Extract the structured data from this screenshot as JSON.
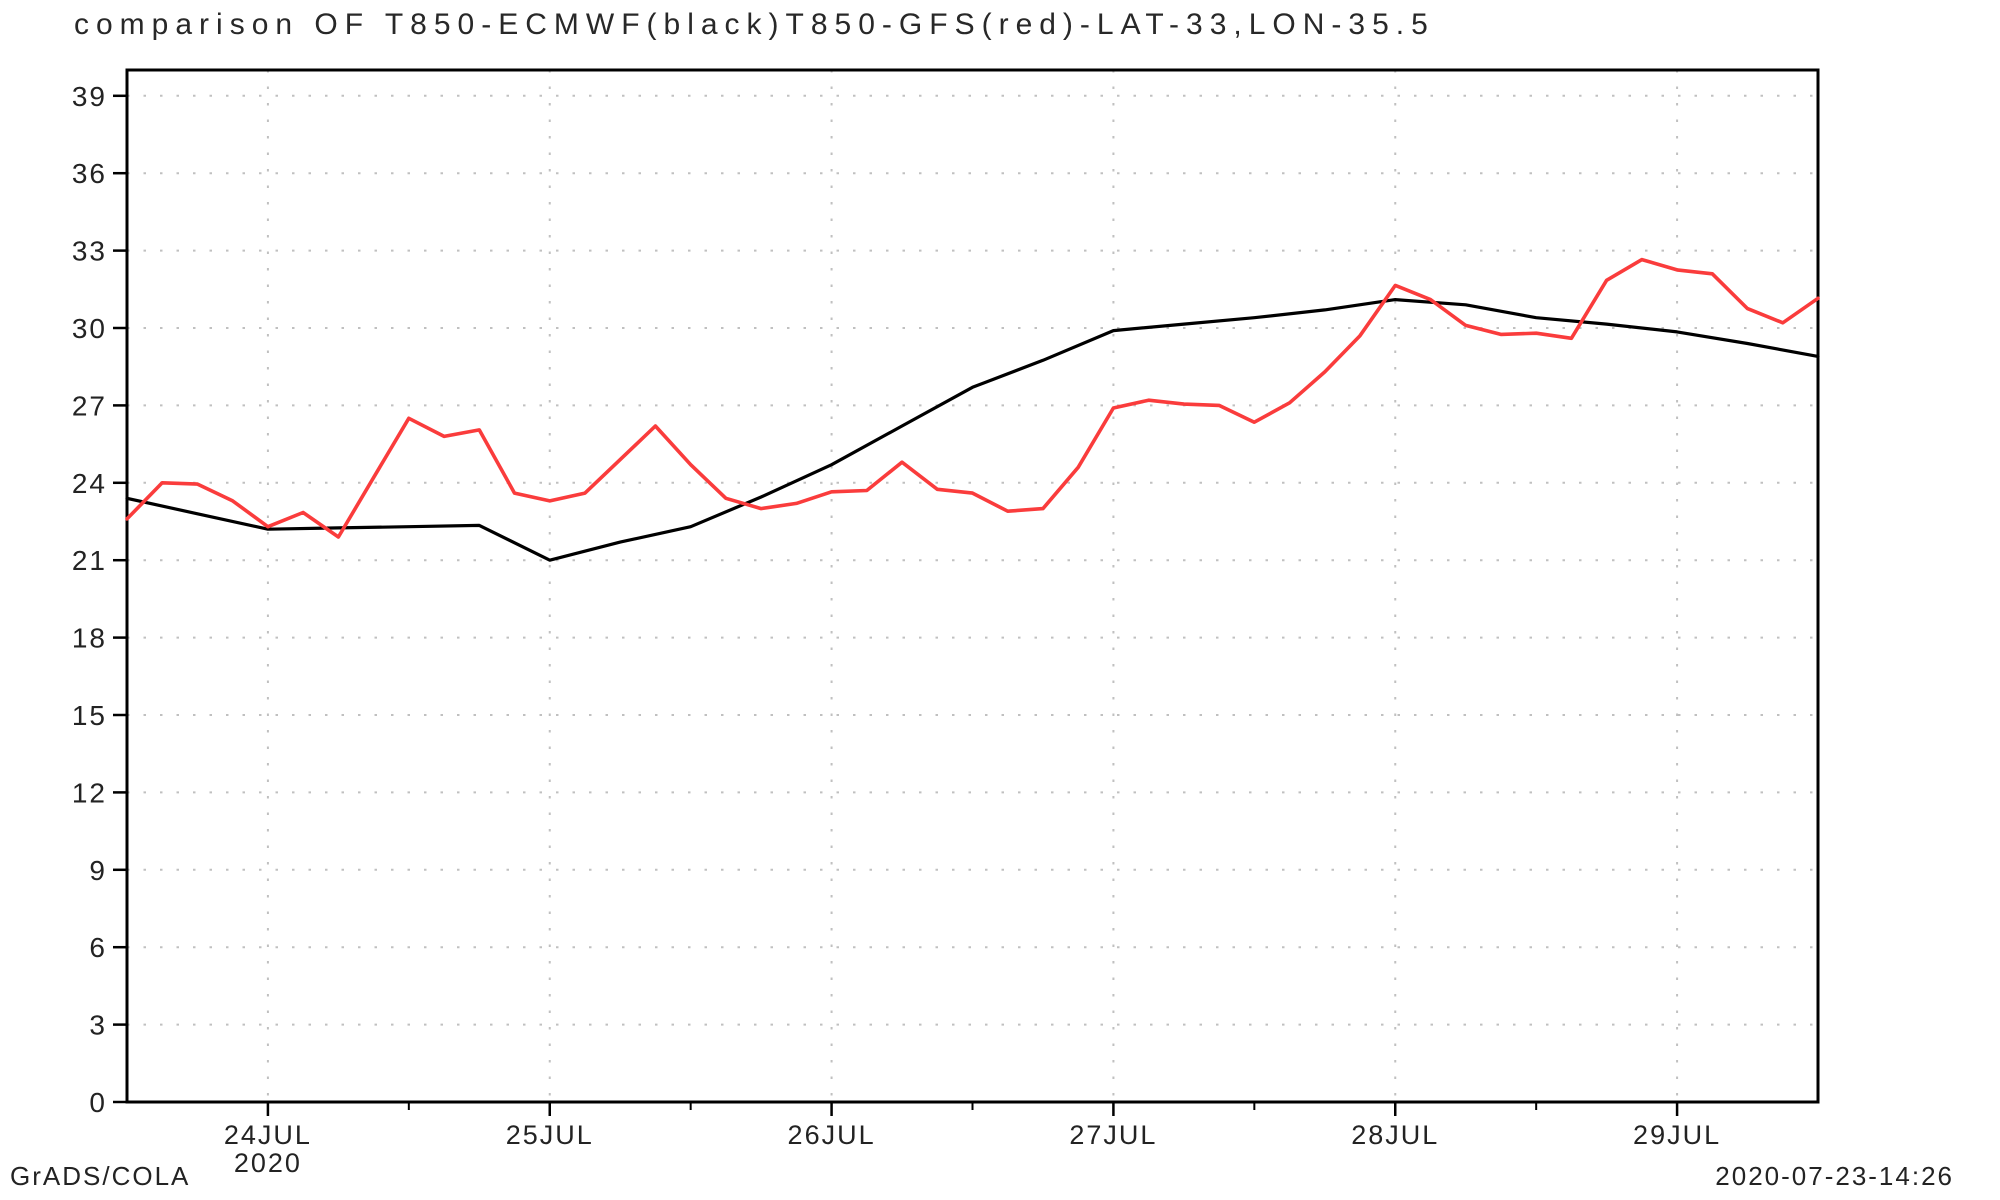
{
  "footer": {
    "left": "GrADS/COLA",
    "right": "2020-07-23-14:26"
  },
  "chart_data": {
    "type": "line",
    "title": "comparison OF T850-ECMWF(black)T850-GFS(red)-LAT-33,LON-35.5",
    "xlabel": "",
    "ylabel": "",
    "x_start_hours": 0,
    "x_end_hours": 144,
    "x_ticks": [
      {
        "hours": 12,
        "label": "24JUL"
      },
      {
        "hours": 36,
        "label": "25JUL"
      },
      {
        "hours": 60,
        "label": "26JUL"
      },
      {
        "hours": 84,
        "label": "27JUL"
      },
      {
        "hours": 108,
        "label": "28JUL"
      },
      {
        "hours": 132,
        "label": "29JUL"
      }
    ],
    "x_minor_ticks_hours": [
      24,
      48,
      72,
      96,
      120
    ],
    "year_label": {
      "hours": 12,
      "text": "2020"
    },
    "ylim": [
      0,
      40
    ],
    "y_ticks": [
      {
        "value": 0,
        "label": "0"
      },
      {
        "value": 3,
        "label": "3"
      },
      {
        "value": 6,
        "label": "6"
      },
      {
        "value": 9,
        "label": "9"
      },
      {
        "value": 12,
        "label": "12"
      },
      {
        "value": 15,
        "label": "15"
      },
      {
        "value": 18,
        "label": "18"
      },
      {
        "value": 21,
        "label": "21"
      },
      {
        "value": 24,
        "label": "24"
      },
      {
        "value": 27,
        "label": "27"
      },
      {
        "value": 30,
        "label": "30"
      },
      {
        "value": 33,
        "label": "33"
      },
      {
        "value": 36,
        "label": "36"
      },
      {
        "value": 39,
        "label": "39"
      }
    ],
    "grid": {
      "show": true,
      "style": "dotted",
      "color": "#c0c0c0"
    },
    "legend_position": "in-title",
    "series": [
      {
        "name": "T850-ECMWF",
        "legend_hint": "black",
        "color": "#000000",
        "line_width": 3.2,
        "step_hours": 6,
        "values": [
          23.4,
          22.8,
          22.2,
          22.25,
          22.3,
          22.35,
          21.0,
          21.7,
          22.3,
          23.45,
          24.7,
          26.2,
          27.7,
          28.75,
          29.9,
          30.15,
          30.4,
          30.7,
          31.1,
          30.9,
          30.4,
          30.15,
          29.85,
          29.4,
          28.9
        ]
      },
      {
        "name": "T850-GFS",
        "legend_hint": "red",
        "color": "#fa3c3c",
        "line_width": 3.6,
        "step_hours": 3,
        "values": [
          22.6,
          24.0,
          23.95,
          23.3,
          22.3,
          22.85,
          21.9,
          24.2,
          26.5,
          25.8,
          26.05,
          23.6,
          23.3,
          23.6,
          24.9,
          26.2,
          24.7,
          23.4,
          23.0,
          23.2,
          23.65,
          23.7,
          24.8,
          23.75,
          23.6,
          22.9,
          23.0,
          24.6,
          26.9,
          27.2,
          27.05,
          27.0,
          26.35,
          27.1,
          28.3,
          29.7,
          31.65,
          31.1,
          30.1,
          29.75,
          29.8,
          29.6,
          31.85,
          32.65,
          32.25,
          32.1,
          30.75,
          30.2,
          31.15
        ]
      }
    ]
  }
}
